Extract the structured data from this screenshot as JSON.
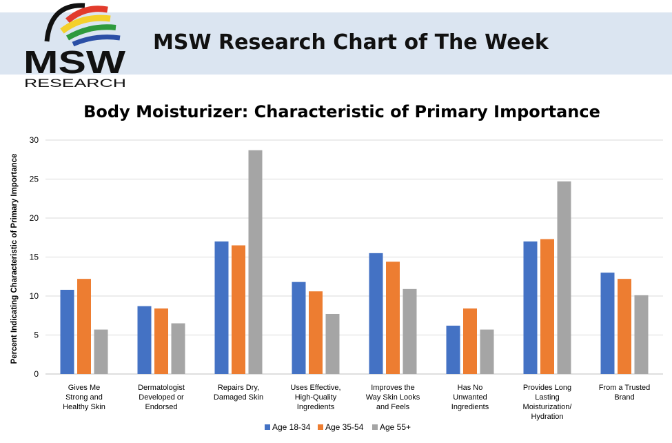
{
  "header": {
    "title": "MSW Research Chart of The Week",
    "logo_text": "MSW",
    "logo_subtext": "RESEARCH"
  },
  "colors": {
    "banner": "#dbe5f1",
    "age_18_34": "#4472c4",
    "age_35_54": "#ed7d31",
    "age_55_plus": "#a5a5a5"
  },
  "chart_data": {
    "type": "bar",
    "title": "Body Moisturizer: Characteristic of Primary Importance",
    "xlabel": "",
    "ylabel": "Percent Indicating Characteristic of Primary Importance",
    "ylim": [
      0,
      30
    ],
    "yticks": [
      0,
      5,
      10,
      15,
      20,
      25,
      30
    ],
    "grid": true,
    "legend_position": "bottom",
    "categories": [
      [
        "Gives Me",
        "Strong and",
        "Healthy Skin"
      ],
      [
        "Dermatologist",
        "Developed or",
        "Endorsed"
      ],
      [
        "Repairs Dry,",
        "Damaged Skin"
      ],
      [
        "Uses Effective,",
        "High-Quality",
        "Ingredients"
      ],
      [
        "Improves the",
        "Way Skin Looks",
        "and Feels"
      ],
      [
        "Has No",
        "Unwanted",
        "Ingredients"
      ],
      [
        "Provides Long",
        "Lasting",
        "Moisturization/",
        "Hydration"
      ],
      [
        "From a Trusted",
        "Brand"
      ]
    ],
    "series": [
      {
        "name": "Age 18-34",
        "color": "#4472c4",
        "values": [
          10.8,
          8.7,
          17.0,
          11.8,
          15.5,
          6.2,
          17.0,
          13.0
        ]
      },
      {
        "name": "Age 35-54",
        "color": "#ed7d31",
        "values": [
          12.2,
          8.4,
          16.5,
          10.6,
          14.4,
          8.4,
          17.3,
          12.2
        ]
      },
      {
        "name": "Age 55+",
        "color": "#a5a5a5",
        "values": [
          5.7,
          6.5,
          28.7,
          7.7,
          10.9,
          5.7,
          24.7,
          10.1
        ]
      }
    ]
  }
}
